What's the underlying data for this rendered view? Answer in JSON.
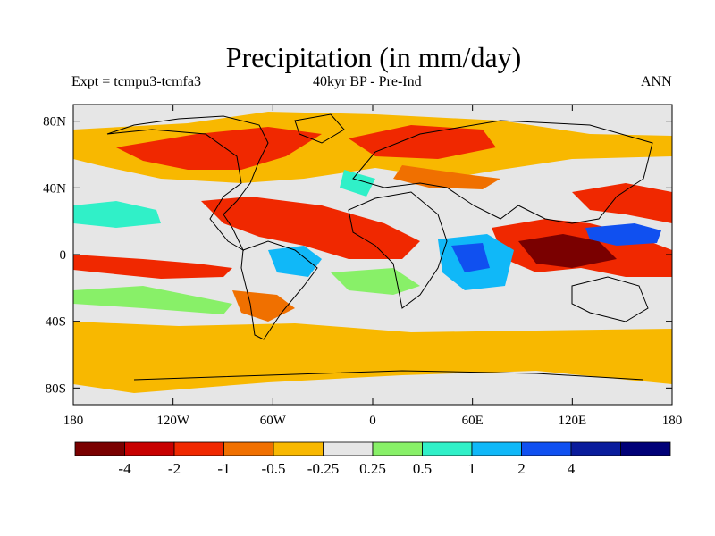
{
  "title": "Precipitation (in mm/day)",
  "left_label": "Expt = tcmpu3-tcmfa3",
  "center_label": "40kyr BP - Pre-Ind",
  "right_label": "ANN",
  "map": {
    "projection": "cylindrical equidistant",
    "lon_range": [
      -180,
      180
    ],
    "lat_range": [
      -90,
      90
    ],
    "y_ticks": [
      "80N",
      "40N",
      "0",
      "40S",
      "80S"
    ],
    "x_ticks": [
      "180",
      "120W",
      "60W",
      "0",
      "60E",
      "120E",
      "180"
    ],
    "background_color": "#e6e6e6"
  },
  "colorbar": {
    "colors": [
      "#7a0000",
      "#c80000",
      "#f02800",
      "#f07000",
      "#f8b800",
      "#e6e6e6",
      "#88f068",
      "#30f0c8",
      "#10b8f8",
      "#1050f0",
      "#0a1c9c",
      "#000078"
    ],
    "labels": [
      "-4",
      "-2",
      "-1",
      "-0.5",
      "-0.25",
      "0.25",
      "0.5",
      "1",
      "2",
      "4"
    ]
  }
}
